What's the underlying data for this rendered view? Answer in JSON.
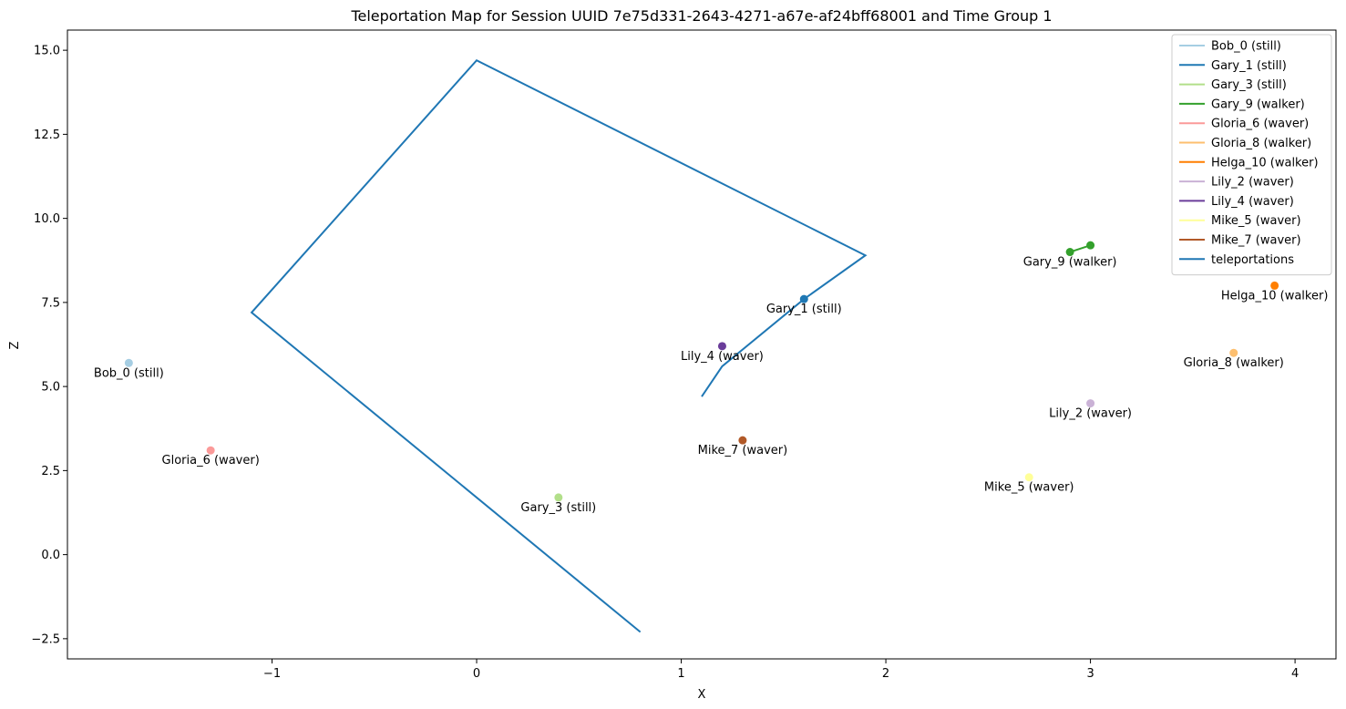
{
  "chart_data": {
    "type": "scatter",
    "title": "Teleportation Map for Session UUID 7e75d331-2643-4271-a67e-af24bff68001 and Time Group 1",
    "xlabel": "X",
    "ylabel": "Z",
    "xlim": [
      -2.0,
      4.2
    ],
    "ylim": [
      -3.1,
      15.6
    ],
    "xticks": [
      -1,
      0,
      1,
      2,
      3,
      4
    ],
    "xtick_labels": [
      "−1",
      "0",
      "1",
      "2",
      "3",
      "4"
    ],
    "yticks": [
      -2.5,
      0.0,
      2.5,
      5.0,
      7.5,
      10.0,
      12.5,
      15.0
    ],
    "ytick_labels": [
      "−2.5",
      "0.0",
      "2.5",
      "5.0",
      "7.5",
      "10.0",
      "12.5",
      "15.0"
    ],
    "grid": false,
    "legend_position": "top-right",
    "series": [
      {
        "name": "Bob_0 (still)",
        "color": "#a6cee3",
        "points": [
          [
            -1.7,
            5.7
          ]
        ],
        "label": "Bob_0 (still)"
      },
      {
        "name": "Gary_1 (still)",
        "color": "#1f78b4",
        "points": [
          [
            1.6,
            7.6
          ]
        ],
        "label": "Gary_1 (still)"
      },
      {
        "name": "Gary_3 (still)",
        "color": "#b2df8a",
        "points": [
          [
            0.4,
            1.7
          ]
        ],
        "label": "Gary_3 (still)"
      },
      {
        "name": "Gary_9 (walker)",
        "color": "#33a02c",
        "points": [
          [
            2.9,
            9.0
          ],
          [
            3.0,
            9.2
          ]
        ],
        "label": "Gary_9 (walker)"
      },
      {
        "name": "Gloria_6 (waver)",
        "color": "#fb9a99",
        "points": [
          [
            -1.3,
            3.1
          ]
        ],
        "label": "Gloria_6 (waver)"
      },
      {
        "name": "Gloria_8 (walker)",
        "color": "#fdbf6f",
        "points": [
          [
            3.7,
            6.0
          ]
        ],
        "label": "Gloria_8 (walker)"
      },
      {
        "name": "Helga_10 (walker)",
        "color": "#ff7f00",
        "points": [
          [
            3.9,
            8.0
          ]
        ],
        "label": "Helga_10 (walker)"
      },
      {
        "name": "Lily_2 (waver)",
        "color": "#cab2d6",
        "points": [
          [
            3.0,
            4.5
          ]
        ],
        "label": "Lily_2 (waver)"
      },
      {
        "name": "Lily_4 (waver)",
        "color": "#6a3d9a",
        "points": [
          [
            1.2,
            6.2
          ]
        ],
        "label": "Lily_4 (waver)"
      },
      {
        "name": "Mike_5 (waver)",
        "color": "#ffff99",
        "points": [
          [
            2.7,
            2.3
          ]
        ],
        "label": "Mike_5 (waver)"
      },
      {
        "name": "Mike_7 (waver)",
        "color": "#b15928",
        "points": [
          [
            1.3,
            3.4
          ]
        ],
        "label": "Mike_7 (waver)"
      }
    ],
    "teleportations": {
      "name": "teleportations",
      "color": "#1f77b4",
      "points": [
        [
          0.8,
          -2.3
        ],
        [
          -1.1,
          7.2
        ],
        [
          0.0,
          14.7
        ],
        [
          1.9,
          8.9
        ],
        [
          1.6,
          7.6
        ],
        [
          1.2,
          5.6
        ],
        [
          1.1,
          4.7
        ]
      ]
    }
  }
}
